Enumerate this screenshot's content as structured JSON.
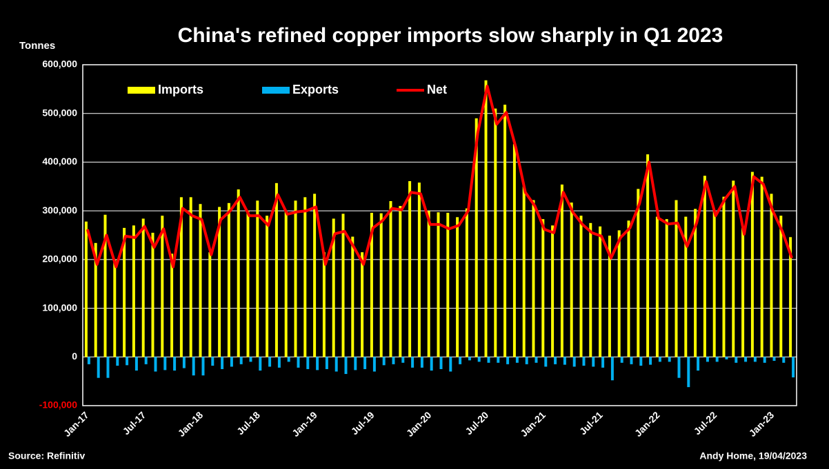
{
  "chart_data": {
    "type": "bar_line",
    "title": "China's refined copper imports slow sharply in Q1 2023",
    "y_axis_label": "Tonnes",
    "source": "Source: Refinitiv",
    "credit": "Andy Home, 19/04/2023",
    "categories": [
      "Jan-17",
      null,
      null,
      null,
      null,
      null,
      "Jul-17",
      null,
      null,
      null,
      null,
      null,
      "Jan-18",
      null,
      null,
      null,
      null,
      null,
      "Jul-18",
      null,
      null,
      null,
      null,
      null,
      "Jan-19",
      null,
      null,
      null,
      null,
      null,
      "Jul-19",
      null,
      null,
      null,
      null,
      null,
      "Jan-20",
      null,
      null,
      null,
      null,
      null,
      "Jul-20",
      null,
      null,
      null,
      null,
      null,
      "Jan-21",
      null,
      null,
      null,
      null,
      null,
      "Jul-21",
      null,
      null,
      null,
      null,
      null,
      "Jan-22",
      null,
      null,
      null,
      null,
      null,
      "Jul-22",
      null,
      null,
      null,
      null,
      null,
      "Jan-23",
      null,
      null
    ],
    "ylim": [
      -100000,
      600000
    ],
    "yticks": [
      {
        "value": -100000,
        "label": "-100,000"
      },
      0,
      {
        "value": 100000,
        "label": "100,000"
      },
      {
        "value": 200000,
        "label": "200,000"
      },
      {
        "value": 300000,
        "label": "300,000"
      },
      {
        "value": 400000,
        "label": "400,000"
      },
      {
        "value": 500000,
        "label": "500,000"
      },
      {
        "value": 600000,
        "label": "600,000"
      }
    ],
    "grid": true,
    "legend": "top-left",
    "series": [
      {
        "name": "Imports",
        "kind": "bar",
        "color": "#ffff00",
        "values": [
          278000,
          234000,
          292000,
          200000,
          265000,
          270000,
          284000,
          255000,
          290000,
          212000,
          328000,
          328000,
          314000,
          215000,
          308000,
          316000,
          344000,
          300000,
          321000,
          290000,
          357000,
          300000,
          321000,
          328000,
          335000,
          215000,
          284000,
          294000,
          247000,
          215000,
          296000,
          295000,
          320000,
          310000,
          361000,
          358000,
          300000,
          297000,
          296000,
          287000,
          305000,
          490000,
          568000,
          510000,
          518000,
          437000,
          350000,
          322000,
          283000,
          270000,
          354000,
          317000,
          290000,
          275000,
          268000,
          249000,
          260000,
          280000,
          345000,
          416000,
          288000,
          283000,
          322000,
          288000,
          304000,
          372000,
          300000,
          329000,
          362000,
          265000,
          380000,
          370000,
          335000,
          290000,
          246000
        ]
      },
      {
        "name": "Exports",
        "kind": "bar",
        "color": "#00b0f0",
        "values": [
          -15000,
          -43000,
          -43000,
          -18000,
          -17000,
          -28000,
          -15000,
          -30000,
          -27000,
          -28000,
          -23000,
          -38000,
          -38000,
          -18000,
          -25000,
          -20000,
          -15000,
          -10000,
          -28000,
          -20000,
          -22000,
          -10000,
          -22000,
          -25000,
          -27000,
          -25000,
          -30000,
          -35000,
          -27000,
          -25000,
          -30000,
          -17000,
          -15000,
          -12000,
          -22000,
          -22000,
          -28000,
          -25000,
          -30000,
          -15000,
          -7000,
          -10000,
          -12000,
          -12000,
          -15000,
          -12000,
          -15000,
          -12000,
          -20000,
          -15000,
          -16000,
          -20000,
          -18000,
          -20000,
          -22000,
          -48000,
          -12000,
          -15000,
          -18000,
          -16000,
          -10000,
          -10000,
          -43000,
          -62000,
          -28000,
          -10000,
          -10000,
          -5000,
          -12000,
          -10000,
          -10000,
          -12000,
          -8000,
          -12000,
          -42000
        ]
      },
      {
        "name": "Net",
        "kind": "line",
        "color": "#ff0000",
        "values": [
          262000,
          190000,
          250000,
          185000,
          248000,
          245000,
          268000,
          225000,
          263000,
          185000,
          305000,
          290000,
          282000,
          210000,
          282000,
          300000,
          328000,
          290000,
          290000,
          270000,
          333000,
          293000,
          298000,
          300000,
          308000,
          190000,
          253000,
          258000,
          225000,
          190000,
          265000,
          280000,
          305000,
          302000,
          338000,
          335000,
          272000,
          272000,
          263000,
          270000,
          300000,
          460000,
          556000,
          478000,
          502000,
          430000,
          338000,
          310000,
          262000,
          255000,
          338000,
          297000,
          272000,
          255000,
          248000,
          203000,
          245000,
          265000,
          315000,
          400000,
          285000,
          273000,
          275000,
          227000,
          275000,
          360000,
          290000,
          325000,
          350000,
          252000,
          370000,
          355000,
          300000,
          258000,
          203000
        ]
      }
    ]
  }
}
